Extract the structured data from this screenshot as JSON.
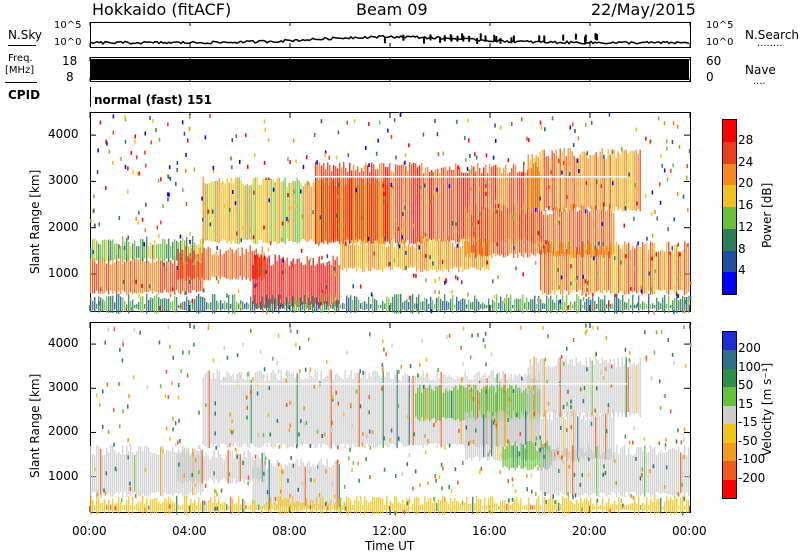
{
  "header": {
    "station": "Hokkaido (fitACF)",
    "beam": "Beam 09",
    "date": "22/May/2015"
  },
  "nsky_panel": {
    "left_label": "N.Sky",
    "right_label": "N.Search",
    "right_dots": "........",
    "tick_top_left": "10^5",
    "tick_bottom_left": "10^0",
    "tick_top_right": "10^5",
    "tick_bottom_right": "10^0"
  },
  "freq_panel": {
    "left_label_1": "Freq.",
    "left_label_2": "[MHz]",
    "tick_top_left": "18",
    "tick_bottom_left": "8",
    "right_label": "Nave",
    "right_dots": "....",
    "tick_top_right": "60",
    "tick_bottom_right": "0",
    "color": "#000000"
  },
  "cpid_panel": {
    "label": "CPID",
    "mode": "normal (fast) 151"
  },
  "chart_data": [
    {
      "type": "heatmap",
      "name": "power",
      "ylabel": "Slant Range [km]",
      "yticks": [
        "1000",
        "2000",
        "3000",
        "4000"
      ],
      "ylim": [
        200,
        4500
      ],
      "xlim": [
        0,
        24
      ],
      "colorbar": {
        "label": "Power [dB]",
        "ticks": [
          "4",
          "8",
          "12",
          "16",
          "20",
          "24",
          "28"
        ],
        "range": [
          0,
          32
        ],
        "colors": [
          "#0000ff",
          "#1f4fa0",
          "#2e7d5a",
          "#6bbf3a",
          "#f1c21b",
          "#f58a1e",
          "#e8401c",
          "#ff0000"
        ]
      },
      "regions": [
        {
          "t0": 0.0,
          "t1": 4.5,
          "r0": 600,
          "r1": 1300,
          "level": 24
        },
        {
          "t0": 0.0,
          "t1": 4.5,
          "r0": 1300,
          "r1": 1700,
          "level": 13
        },
        {
          "t0": 3.5,
          "t1": 7.0,
          "r0": 900,
          "r1": 1500,
          "level": 24
        },
        {
          "t0": 6.5,
          "t1": 10.0,
          "r0": 300,
          "r1": 1300,
          "level": 30
        },
        {
          "t0": 4.5,
          "t1": 12.0,
          "r0": 1700,
          "r1": 3000,
          "level": 18
        },
        {
          "t0": 9.0,
          "t1": 18.0,
          "r0": 1700,
          "r1": 3300,
          "level": 26
        },
        {
          "t0": 10.0,
          "t1": 16.0,
          "r0": 1100,
          "r1": 1700,
          "level": 20
        },
        {
          "t0": 15.0,
          "t1": 21.0,
          "r0": 1400,
          "r1": 2400,
          "level": 24
        },
        {
          "t0": 18.0,
          "t1": 24.0,
          "r0": 600,
          "r1": 1600,
          "level": 22
        },
        {
          "t0": 17.5,
          "t1": 22.0,
          "r0": 2400,
          "r1": 3600,
          "level": 22
        },
        {
          "t0": 0.0,
          "t1": 24.0,
          "r0": 200,
          "r1": 450,
          "level": 10
        }
      ]
    },
    {
      "type": "heatmap",
      "name": "velocity",
      "ylabel": "Slant Range [km]",
      "yticks": [
        "1000",
        "2000",
        "3000",
        "4000"
      ],
      "ylim": [
        200,
        4500
      ],
      "xlim": [
        0,
        24
      ],
      "xlabel": "Time UT",
      "xticks": [
        "00:00",
        "04:00",
        "08:00",
        "12:00",
        "16:00",
        "20:00",
        "00:00"
      ],
      "colorbar": {
        "label": "Velocity [m s⁻¹]",
        "ticks": [
          "200",
          "100",
          "50",
          "15",
          "-15",
          "-50",
          "-100",
          "-200"
        ],
        "colors": [
          "#1e2bd6",
          "#2f6f8a",
          "#2e8f4a",
          "#66c23a",
          "#cdcdcd",
          "#f2c417",
          "#f39a1c",
          "#f05a1a",
          "#ff0000"
        ]
      },
      "regions": [
        {
          "t0": 0.0,
          "t1": 4.5,
          "r0": 600,
          "r1": 1600,
          "vel": 0
        },
        {
          "t0": 3.5,
          "t1": 7.0,
          "r0": 900,
          "r1": 1500,
          "vel": 0
        },
        {
          "t0": 6.5,
          "t1": 10.0,
          "r0": 300,
          "r1": 1300,
          "vel": 0
        },
        {
          "t0": 4.5,
          "t1": 18.0,
          "r0": 1700,
          "r1": 3300,
          "vel": 0
        },
        {
          "t0": 13.0,
          "t1": 18.0,
          "r0": 2300,
          "r1": 3000,
          "vel": 30
        },
        {
          "t0": 15.0,
          "t1": 21.0,
          "r0": 1400,
          "r1": 2400,
          "vel": 0
        },
        {
          "t0": 16.5,
          "t1": 18.5,
          "r0": 1200,
          "r1": 1700,
          "vel": 40
        },
        {
          "t0": 18.0,
          "t1": 24.0,
          "r0": 600,
          "r1": 1600,
          "vel": 0
        },
        {
          "t0": 17.5,
          "t1": 22.0,
          "r0": 2400,
          "r1": 3600,
          "vel": 0
        },
        {
          "t0": 0.0,
          "t1": 24.0,
          "r0": 200,
          "r1": 450,
          "vel": -30
        }
      ]
    }
  ]
}
